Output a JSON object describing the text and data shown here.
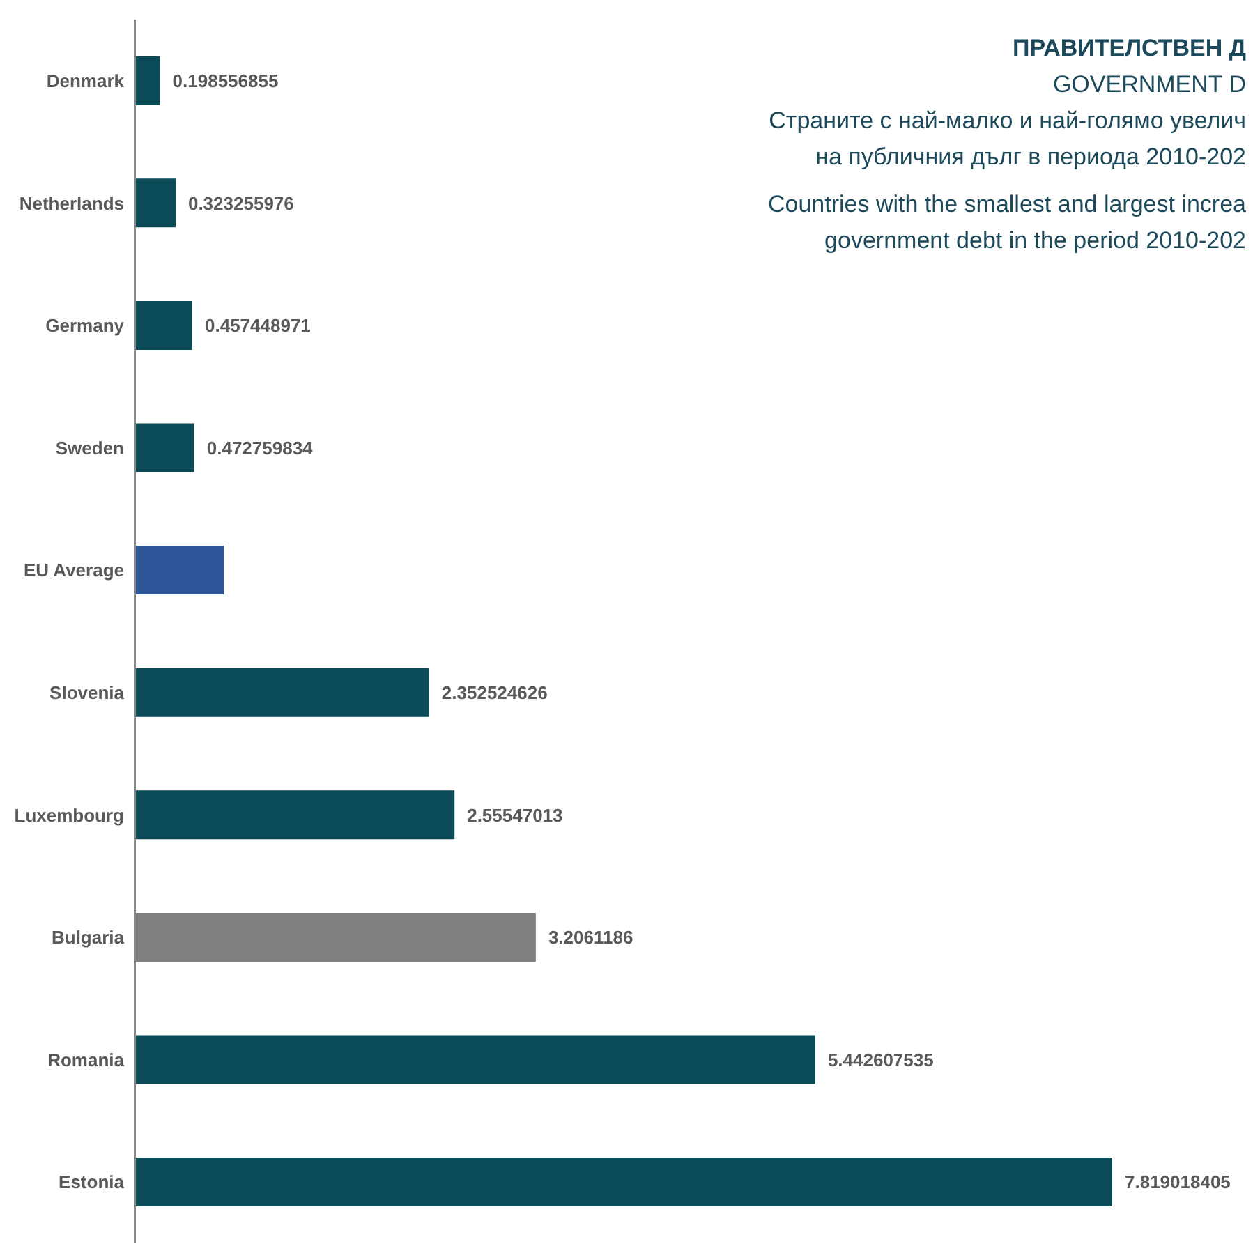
{
  "chart_data": {
    "type": "bar",
    "orientation": "horizontal",
    "title": "ПРАВИТЕЛСТВЕН Д",
    "subtitle": "GOVERNMENT D",
    "annotations": [
      "Страните с най-малко и най-голямо увелич",
      "на публичния дълг в периода 2010-202",
      "Countries with the smallest and largest increa",
      "government debt in the period 2010-202"
    ],
    "categories": [
      "Denmark",
      "Netherlands",
      "Germany",
      "Sweden",
      "EU Average",
      "Slovenia",
      "Luxembourg",
      "Bulgaria",
      "Romania",
      "Estonia"
    ],
    "values": [
      0.198556855,
      0.323255976,
      0.457448971,
      0.472759834,
      0.71,
      2.352524626,
      2.55547013,
      3.2061186,
      5.442607535,
      7.819018405
    ],
    "value_labels": [
      "0.198556855",
      "0.323255976",
      "0.457448971",
      "0.472759834",
      null,
      "2.352524626",
      "2.55547013",
      "3.2061186",
      "5.442607535",
      "7.819018405"
    ],
    "colors": [
      "#0b4a57",
      "#0b4a57",
      "#0b4a57",
      "#0b4a57",
      "#2e5597",
      "#0b4a57",
      "#0b4a57",
      "#7f7f7f",
      "#0b4a57",
      "#0b4a57"
    ],
    "grid": false,
    "legend": false
  }
}
